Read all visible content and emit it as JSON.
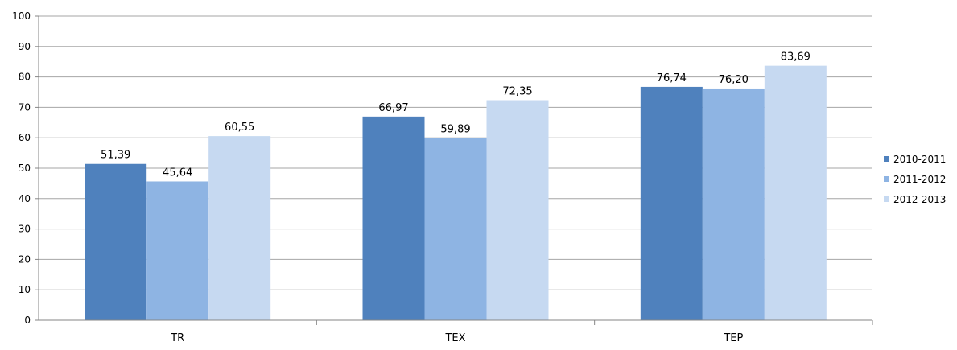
{
  "chart_data": {
    "type": "bar",
    "categories": [
      "TR",
      "TEX",
      "TEP"
    ],
    "series": [
      {
        "name": "2010-2011",
        "values": [
          51.39,
          66.97,
          76.74
        ],
        "labels": [
          "51,39",
          "66,97",
          "76,74"
        ],
        "color": "#4F81BD"
      },
      {
        "name": "2011-2012",
        "values": [
          45.64,
          59.89,
          76.2
        ],
        "labels": [
          "45,64",
          "59,89",
          "76,20"
        ],
        "color": "#8EB4E3"
      },
      {
        "name": "2012-2013",
        "values": [
          60.55,
          72.35,
          83.69
        ],
        "labels": [
          "60,55",
          "72,35",
          "83,69"
        ],
        "color": "#C6D9F1"
      }
    ],
    "yticks": [
      "0",
      "10",
      "20",
      "30",
      "40",
      "50",
      "60",
      "70",
      "80",
      "90",
      "100"
    ],
    "ylim": [
      0,
      100
    ],
    "grid": true,
    "legend_position": "right",
    "title": "",
    "xlabel": "",
    "ylabel": ""
  }
}
